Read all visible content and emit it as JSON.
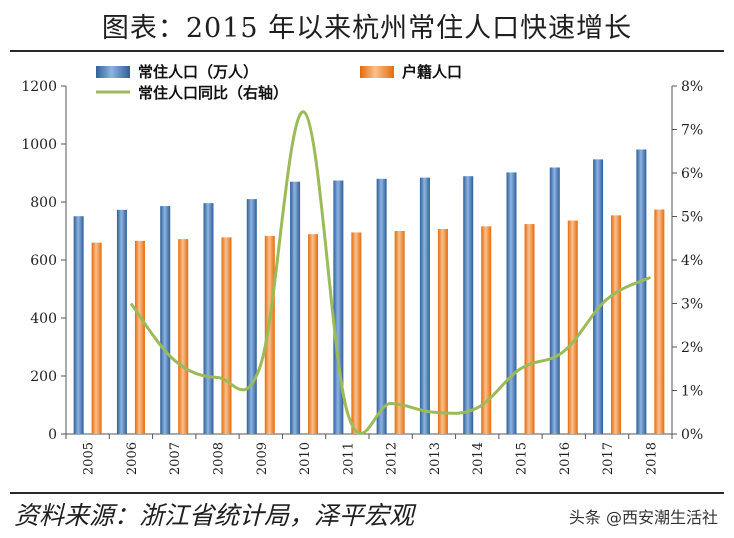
{
  "title": "图表：2015 年以来杭州常住人口快速增长",
  "footer": {
    "source": "资料来源：浙江省统计局，泽平宏观",
    "watermark": "头条 @西安潮生活社"
  },
  "colors": {
    "resident": "#4F81BD",
    "hukou": "#F79646",
    "yoy": "#9BBB59"
  },
  "chart_data": {
    "type": "bar",
    "categories": [
      "2005",
      "2006",
      "2007",
      "2008",
      "2009",
      "2010",
      "2011",
      "2012",
      "2013",
      "2014",
      "2015",
      "2016",
      "2017",
      "2018"
    ],
    "series": [
      {
        "name": "常住人口（万人）",
        "type": "bar",
        "axis": "left",
        "values": [
          751,
          773,
          786,
          796,
          810,
          870,
          874,
          880,
          884,
          889,
          902,
          919,
          947,
          981
        ]
      },
      {
        "name": "户籍人口",
        "type": "bar",
        "axis": "left",
        "values": [
          660,
          666,
          672,
          678,
          683,
          689,
          695,
          700,
          707,
          716,
          724,
          736,
          754,
          774
        ]
      },
      {
        "name": "常住人口同比（右轴）",
        "type": "line",
        "axis": "right",
        "values": [
          null,
          3.0,
          1.7,
          1.3,
          1.6,
          7.4,
          0.5,
          0.7,
          0.5,
          0.6,
          1.5,
          1.9,
          3.1,
          3.6
        ]
      }
    ],
    "yaxis_left": {
      "min": 0,
      "max": 1200,
      "ticks": [
        "0",
        "200",
        "400",
        "600",
        "800",
        "1000",
        "1200"
      ]
    },
    "yaxis_right": {
      "min": 0,
      "max": 8,
      "ticks": [
        "0%",
        "1%",
        "2%",
        "3%",
        "4%",
        "5%",
        "6%",
        "7%",
        "8%"
      ]
    },
    "legend_position": "top",
    "grid": false
  }
}
